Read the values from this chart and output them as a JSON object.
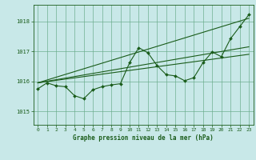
{
  "title": "Graphe pression niveau de la mer (hPa)",
  "bg_color": "#c8e8e8",
  "grid_color": "#66aa88",
  "line_color": "#1a5c1a",
  "xlim": [
    -0.5,
    23.5
  ],
  "ylim": [
    1014.55,
    1018.55
  ],
  "yticks": [
    1015,
    1016,
    1017,
    1018
  ],
  "xticks": [
    0,
    1,
    2,
    3,
    4,
    5,
    6,
    7,
    8,
    9,
    10,
    11,
    12,
    13,
    14,
    15,
    16,
    17,
    18,
    19,
    20,
    21,
    22,
    23
  ],
  "main_data": [
    1015.75,
    1015.95,
    1015.85,
    1015.82,
    1015.52,
    1015.42,
    1015.72,
    1015.82,
    1015.88,
    1015.92,
    1016.62,
    1017.12,
    1016.95,
    1016.52,
    1016.22,
    1016.18,
    1016.02,
    1016.12,
    1016.62,
    1016.98,
    1016.82,
    1017.42,
    1017.82,
    1018.22
  ],
  "trend1_x": [
    0,
    23
  ],
  "trend1_y": [
    1015.95,
    1016.9
  ],
  "trend2_x": [
    0,
    23
  ],
  "trend2_y": [
    1015.95,
    1017.15
  ],
  "trend3_x": [
    0,
    23
  ],
  "trend3_y": [
    1015.95,
    1018.1
  ],
  "xlabel_fontsize": 5.5,
  "ylabel_fontsize": 5.5,
  "title_fontsize": 5.5
}
